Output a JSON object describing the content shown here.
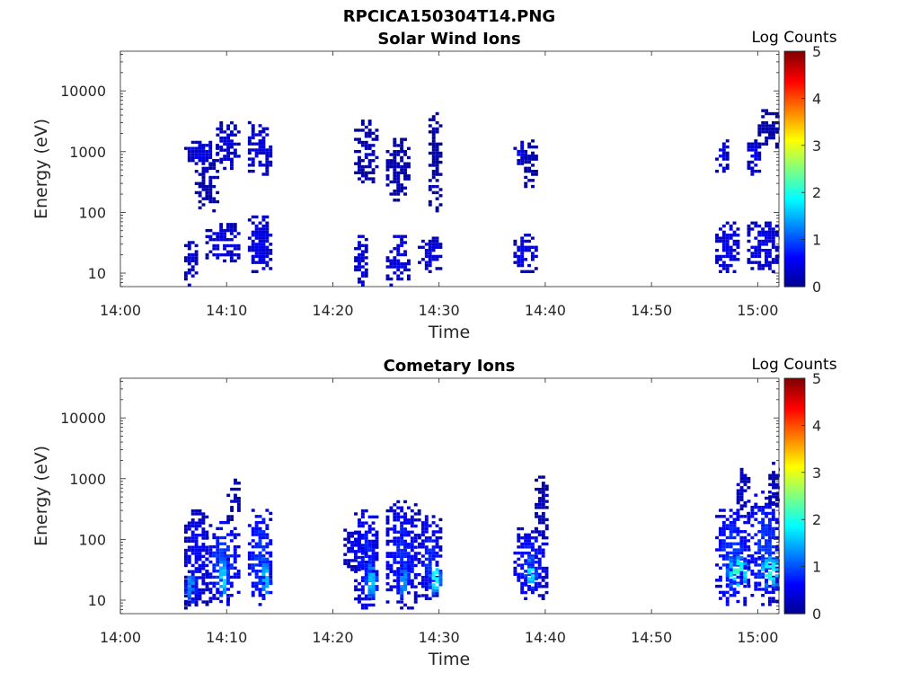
{
  "figure_title": "RPCICA150304T14.PNG",
  "colormap": [
    "#00008f",
    "#0000ff",
    "#0080ff",
    "#00ffff",
    "#80ff80",
    "#ffff00",
    "#ff8000",
    "#ff0000",
    "#800000"
  ],
  "chart_data": [
    {
      "type": "heatmap",
      "title": "Solar Wind Ions",
      "xlabel": "Time",
      "ylabel": "Energy (eV)",
      "x_ticks": [
        "14:00",
        "14:10",
        "14:20",
        "14:30",
        "14:40",
        "14:50",
        "15:00"
      ],
      "xlim": [
        "14:00",
        "15:02"
      ],
      "y_scale": "log",
      "y_ticks": [
        "10",
        "100",
        "1000",
        "10000"
      ],
      "ylim": [
        6,
        45000
      ],
      "colorbar": {
        "label": "Log Counts",
        "range": [
          0,
          5
        ],
        "ticks": [
          "0",
          "1",
          "2",
          "3",
          "4",
          "5"
        ]
      },
      "blobs": [
        {
          "t0": "14:06",
          "t1": "14:07",
          "e0": 6,
          "e1": 35,
          "count": 0.4
        },
        {
          "t0": "14:06",
          "t1": "14:09",
          "e0": 600,
          "e1": 1500,
          "count": 0.45
        },
        {
          "t0": "14:07",
          "t1": "14:09",
          "e0": 100,
          "e1": 600,
          "count": 0.2
        },
        {
          "t0": "14:08",
          "t1": "14:11",
          "e0": 15,
          "e1": 60,
          "count": 0.45
        },
        {
          "t0": "14:09",
          "t1": "14:11",
          "e0": 500,
          "e1": 3000,
          "count": 0.4
        },
        {
          "t0": "14:12",
          "t1": "14:14",
          "e0": 10,
          "e1": 80,
          "count": 0.45
        },
        {
          "t0": "14:12",
          "t1": "14:14",
          "e0": 400,
          "e1": 3000,
          "count": 0.4
        },
        {
          "t0": "14:22",
          "t1": "14:23",
          "e0": 6,
          "e1": 40,
          "count": 0.4
        },
        {
          "t0": "14:22",
          "t1": "14:24",
          "e0": 300,
          "e1": 3000,
          "count": 0.15
        },
        {
          "t0": "14:25",
          "t1": "14:27",
          "e0": 6,
          "e1": 40,
          "count": 0.4
        },
        {
          "t0": "14:25",
          "t1": "14:27",
          "e0": 150,
          "e1": 1500,
          "count": 0.15
        },
        {
          "t0": "14:28",
          "t1": "14:30",
          "e0": 10,
          "e1": 40,
          "count": 0.4
        },
        {
          "t0": "14:29",
          "t1": "14:30",
          "e0": 100,
          "e1": 5000,
          "count": 0.15
        },
        {
          "t0": "14:37",
          "t1": "14:38",
          "e0": 600,
          "e1": 1500,
          "count": 0.45
        },
        {
          "t0": "14:37",
          "t1": "14:39",
          "e0": 10,
          "e1": 40,
          "count": 0.45
        },
        {
          "t0": "14:38",
          "t1": "14:39",
          "e0": 200,
          "e1": 1500,
          "count": 0.15
        },
        {
          "t0": "14:56",
          "t1": "14:58",
          "e0": 10,
          "e1": 70,
          "count": 0.45
        },
        {
          "t0": "14:56",
          "t1": "14:57",
          "e0": 400,
          "e1": 1500,
          "count": 0.4
        },
        {
          "t0": "14:59",
          "t1": "15:00",
          "e0": 400,
          "e1": 1500,
          "count": 0.45
        },
        {
          "t0": "14:59",
          "t1": "15:02",
          "e0": 10,
          "e1": 70,
          "count": 0.45
        },
        {
          "t0": "15:00",
          "t1": "15:02",
          "e0": 1000,
          "e1": 5000,
          "count": 0.15
        }
      ]
    },
    {
      "type": "heatmap",
      "title": "Cometary Ions",
      "xlabel": "Time",
      "ylabel": "Energy (eV)",
      "x_ticks": [
        "14:00",
        "14:10",
        "14:20",
        "14:30",
        "14:40",
        "14:50",
        "15:00"
      ],
      "xlim": [
        "14:00",
        "15:02"
      ],
      "y_scale": "log",
      "y_ticks": [
        "10",
        "100",
        "1000",
        "10000"
      ],
      "ylim": [
        6,
        45000
      ],
      "colorbar": {
        "label": "Log Counts",
        "range": [
          0,
          5
        ],
        "ticks": [
          "0",
          "1",
          "2",
          "3",
          "4",
          "5"
        ]
      },
      "blobs": [
        {
          "t0": "14:06",
          "t1": "14:08",
          "e0": 7,
          "e1": 300,
          "count": 0.6
        },
        {
          "t0": "14:06",
          "t1": "14:07",
          "e0": 8,
          "e1": 30,
          "count": 1.3
        },
        {
          "t0": "14:08",
          "t1": "14:11",
          "e0": 8,
          "e1": 200,
          "count": 0.8
        },
        {
          "t0": "14:09",
          "t1": "14:10",
          "e0": 10,
          "e1": 50,
          "count": 1.6
        },
        {
          "t0": "14:10",
          "t1": "14:11",
          "e0": 200,
          "e1": 1000,
          "count": 0.2
        },
        {
          "t0": "14:12",
          "t1": "14:14",
          "e0": 8,
          "e1": 300,
          "count": 0.8
        },
        {
          "t0": "14:13",
          "t1": "14:14",
          "e0": 10,
          "e1": 50,
          "count": 1.5
        },
        {
          "t0": "14:21",
          "t1": "14:23",
          "e0": 30,
          "e1": 150,
          "count": 0.4
        },
        {
          "t0": "14:22",
          "t1": "14:24",
          "e0": 7,
          "e1": 300,
          "count": 0.7
        },
        {
          "t0": "14:23",
          "t1": "14:24",
          "e0": 10,
          "e1": 40,
          "count": 1.5
        },
        {
          "t0": "14:25",
          "t1": "14:28",
          "e0": 7,
          "e1": 400,
          "count": 0.7
        },
        {
          "t0": "14:26",
          "t1": "14:27",
          "e0": 10,
          "e1": 40,
          "count": 1.3
        },
        {
          "t0": "14:28",
          "t1": "14:30",
          "e0": 10,
          "e1": 250,
          "count": 0.7
        },
        {
          "t0": "14:29",
          "t1": "14:30",
          "e0": 12,
          "e1": 40,
          "count": 1.9
        },
        {
          "t0": "14:37",
          "t1": "14:40",
          "e0": 10,
          "e1": 150,
          "count": 0.7
        },
        {
          "t0": "14:38",
          "t1": "14:39",
          "e0": 15,
          "e1": 50,
          "count": 1.7
        },
        {
          "t0": "14:39",
          "t1": "14:40",
          "e0": 100,
          "e1": 1000,
          "count": 0.2
        },
        {
          "t0": "14:56",
          "t1": "14:59",
          "e0": 8,
          "e1": 300,
          "count": 0.8
        },
        {
          "t0": "14:57",
          "t1": "14:59",
          "e0": 15,
          "e1": 50,
          "count": 2.0
        },
        {
          "t0": "14:58",
          "t1": "14:59",
          "e0": 300,
          "e1": 1500,
          "count": 0.3
        },
        {
          "t0": "14:59",
          "t1": "15:02",
          "e0": 8,
          "e1": 600,
          "count": 0.8
        },
        {
          "t0": "15:00",
          "t1": "15:02",
          "e0": 15,
          "e1": 50,
          "count": 1.9
        },
        {
          "t0": "15:01",
          "t1": "15:02",
          "e0": 300,
          "e1": 2000,
          "count": 0.3
        }
      ]
    }
  ]
}
